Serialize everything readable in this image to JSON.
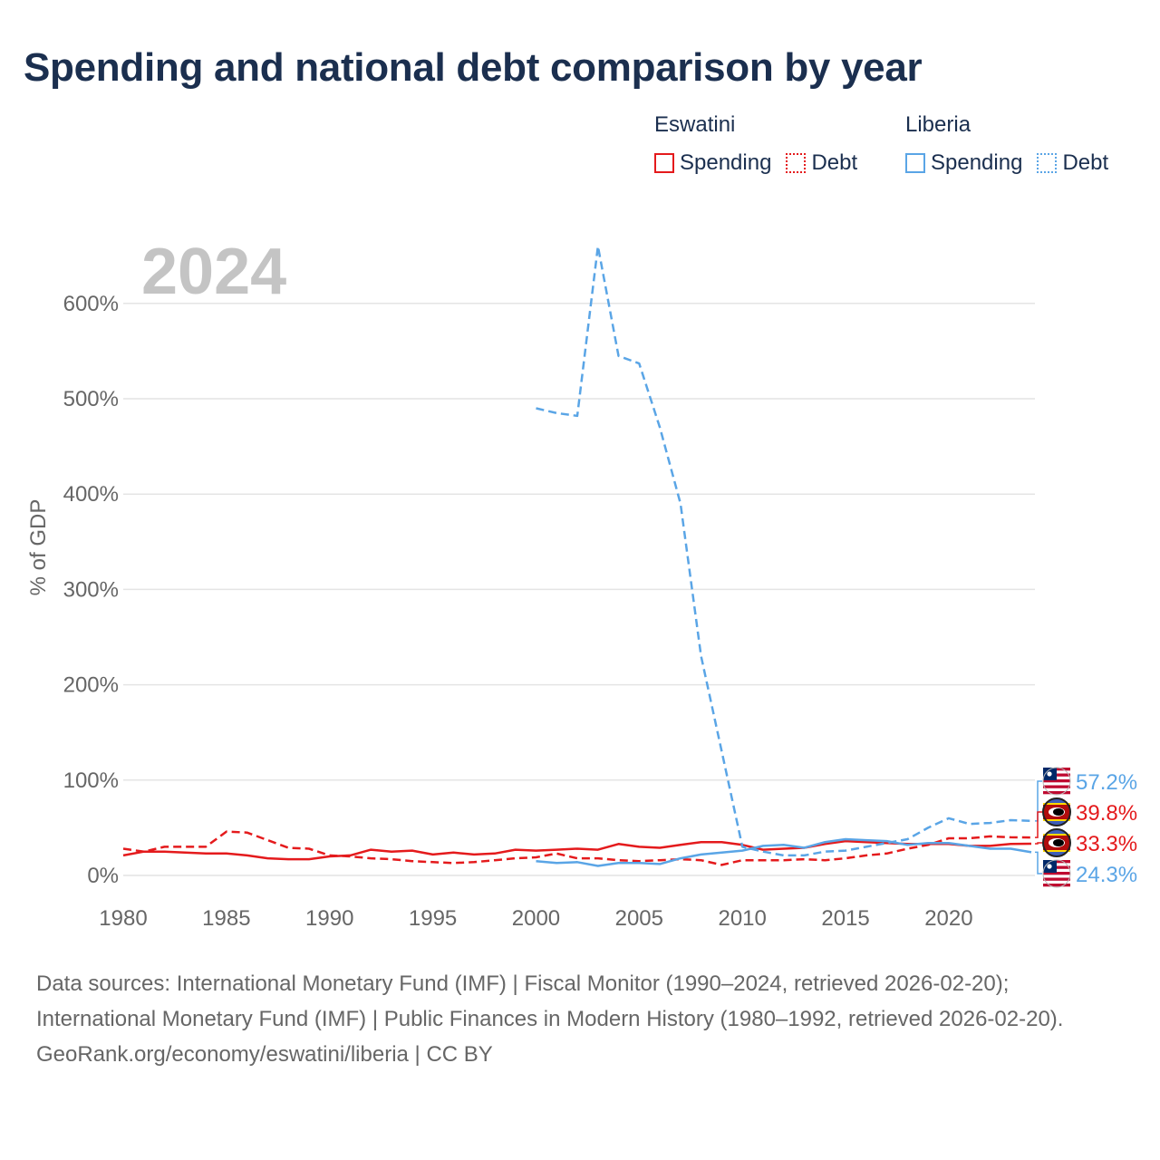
{
  "title": "Spending and national debt comparison by year",
  "legend": {
    "groups": [
      {
        "name": "Eswatini",
        "color": "#e41a1c",
        "items": [
          "Spending",
          "Debt"
        ]
      },
      {
        "name": "Liberia",
        "color": "#5aa5e6",
        "items": [
          "Spending",
          "Debt"
        ]
      }
    ]
  },
  "year_label": "2024",
  "chart_data": {
    "type": "line",
    "title": "Spending and national debt comparison by year",
    "xlabel": "",
    "ylabel": "% of GDP",
    "xlim": [
      1980,
      2024
    ],
    "ylim": [
      0,
      650
    ],
    "x_ticks": [
      1980,
      1985,
      1990,
      1995,
      2000,
      2005,
      2010,
      2015,
      2020
    ],
    "y_ticks": [
      0,
      100,
      200,
      300,
      400,
      500,
      600
    ],
    "y_tick_labels": [
      "0%",
      "100%",
      "200%",
      "300%",
      "400%",
      "500%",
      "600%"
    ],
    "series": [
      {
        "name": "Eswatini Spending",
        "color": "#e41a1c",
        "dash": "solid",
        "x": [
          1980,
          1981,
          1982,
          1983,
          1984,
          1985,
          1986,
          1987,
          1988,
          1989,
          1990,
          1991,
          1992,
          1993,
          1994,
          1995,
          1996,
          1997,
          1998,
          1999,
          2000,
          2001,
          2002,
          2003,
          2004,
          2005,
          2006,
          2007,
          2008,
          2009,
          2010,
          2011,
          2012,
          2013,
          2014,
          2015,
          2016,
          2017,
          2018,
          2019,
          2020,
          2021,
          2022,
          2023,
          2024
        ],
        "y": [
          21,
          25,
          25,
          24,
          23,
          23,
          21,
          18,
          17,
          17,
          20,
          21,
          27,
          25,
          26,
          22,
          24,
          22,
          23,
          27,
          26,
          27,
          28,
          27,
          33,
          30,
          29,
          32,
          35,
          35,
          32,
          27,
          28,
          29,
          33,
          36,
          35,
          34,
          33,
          33,
          33,
          31,
          31,
          33,
          33.3
        ]
      },
      {
        "name": "Eswatini Debt",
        "color": "#e41a1c",
        "dash": "dashed",
        "x": [
          1980,
          1981,
          1982,
          1983,
          1984,
          1985,
          1986,
          1987,
          1988,
          1989,
          1990,
          1991,
          1992,
          1993,
          1994,
          1995,
          1996,
          1997,
          1998,
          1999,
          2000,
          2001,
          2002,
          2003,
          2004,
          2005,
          2006,
          2007,
          2008,
          2009,
          2010,
          2011,
          2012,
          2013,
          2014,
          2015,
          2016,
          2017,
          2018,
          2019,
          2020,
          2021,
          2022,
          2023,
          2024
        ],
        "y": [
          28,
          25,
          30,
          30,
          30,
          46,
          45,
          37,
          29,
          28,
          21,
          20,
          18,
          17,
          15,
          14,
          13,
          14,
          16,
          18,
          19,
          23,
          18,
          18,
          16,
          15,
          16,
          17,
          16,
          11,
          16,
          16,
          16,
          17,
          16,
          18,
          21,
          23,
          28,
          32,
          39,
          39,
          41,
          40,
          39.8
        ]
      },
      {
        "name": "Liberia Spending",
        "color": "#5aa5e6",
        "dash": "solid",
        "x": [
          2000,
          2001,
          2002,
          2003,
          2004,
          2005,
          2006,
          2007,
          2008,
          2009,
          2010,
          2011,
          2012,
          2013,
          2014,
          2015,
          2016,
          2017,
          2018,
          2019,
          2020,
          2021,
          2022,
          2023,
          2024
        ],
        "y": [
          15,
          13,
          14,
          10,
          13,
          13,
          12,
          18,
          22,
          24,
          26,
          31,
          32,
          29,
          35,
          38,
          37,
          36,
          32,
          34,
          34,
          31,
          28,
          28,
          24.3
        ]
      },
      {
        "name": "Liberia Debt",
        "color": "#5aa5e6",
        "dash": "dashed",
        "x": [
          2000,
          2001,
          2002,
          2003,
          2004,
          2005,
          2006,
          2007,
          2008,
          2009,
          2010,
          2011,
          2012,
          2013,
          2014,
          2015,
          2016,
          2017,
          2018,
          2019,
          2020,
          2021,
          2022,
          2023,
          2024
        ],
        "y": [
          490,
          485,
          482,
          660,
          545,
          537,
          470,
          390,
          230,
          130,
          30,
          25,
          21,
          21,
          25,
          26,
          30,
          34,
          38,
          50,
          60,
          54,
          55,
          58,
          57.2
        ]
      }
    ],
    "end_labels": [
      {
        "text": "57.2%",
        "series": "Liberia Debt",
        "value": 57.2,
        "color": "#5aa5e6",
        "flag": "liberia"
      },
      {
        "text": "39.8%",
        "series": "Eswatini Debt",
        "value": 39.8,
        "color": "#e41a1c",
        "flag": "eswatini"
      },
      {
        "text": "33.3%",
        "series": "Eswatini Spending",
        "value": 33.3,
        "color": "#e41a1c",
        "flag": "eswatini"
      },
      {
        "text": "24.3%",
        "series": "Liberia Spending",
        "value": 24.3,
        "color": "#5aa5e6",
        "flag": "liberia"
      }
    ]
  },
  "footer": {
    "sources": "Data sources: International Monetary Fund (IMF) | Fiscal Monitor (1990–2024, retrieved 2026-02-20); International Monetary Fund (IMF) | Public Finances in Modern History (1980–1992, retrieved 2026-02-20).",
    "credit": "GeoRank.org/economy/eswatini/liberia | CC BY"
  }
}
